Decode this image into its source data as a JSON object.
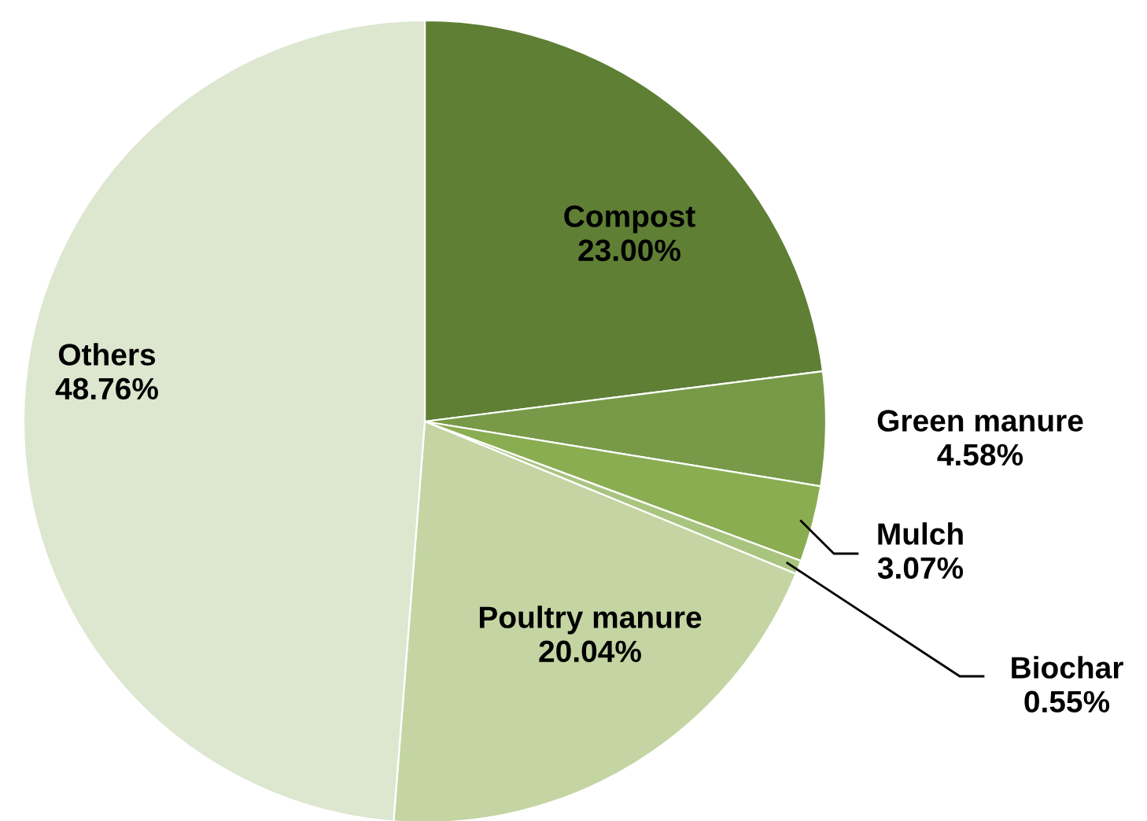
{
  "chart_data": {
    "type": "pie",
    "categories": [
      "Compost",
      "Green manure",
      "Mulch",
      "Biochar",
      "Poultry manure",
      "Others"
    ],
    "values": [
      23.0,
      4.58,
      3.07,
      0.55,
      20.04,
      48.76
    ],
    "value_labels": [
      "23.00%",
      "4.58%",
      "3.07%",
      "0.55%",
      "20.04%",
      "48.76%"
    ],
    "colors": [
      "#5f7f35",
      "#789a48",
      "#8bad52",
      "#a9c47f",
      "#c4d5a3",
      "#dde6cf"
    ],
    "legend": false
  }
}
